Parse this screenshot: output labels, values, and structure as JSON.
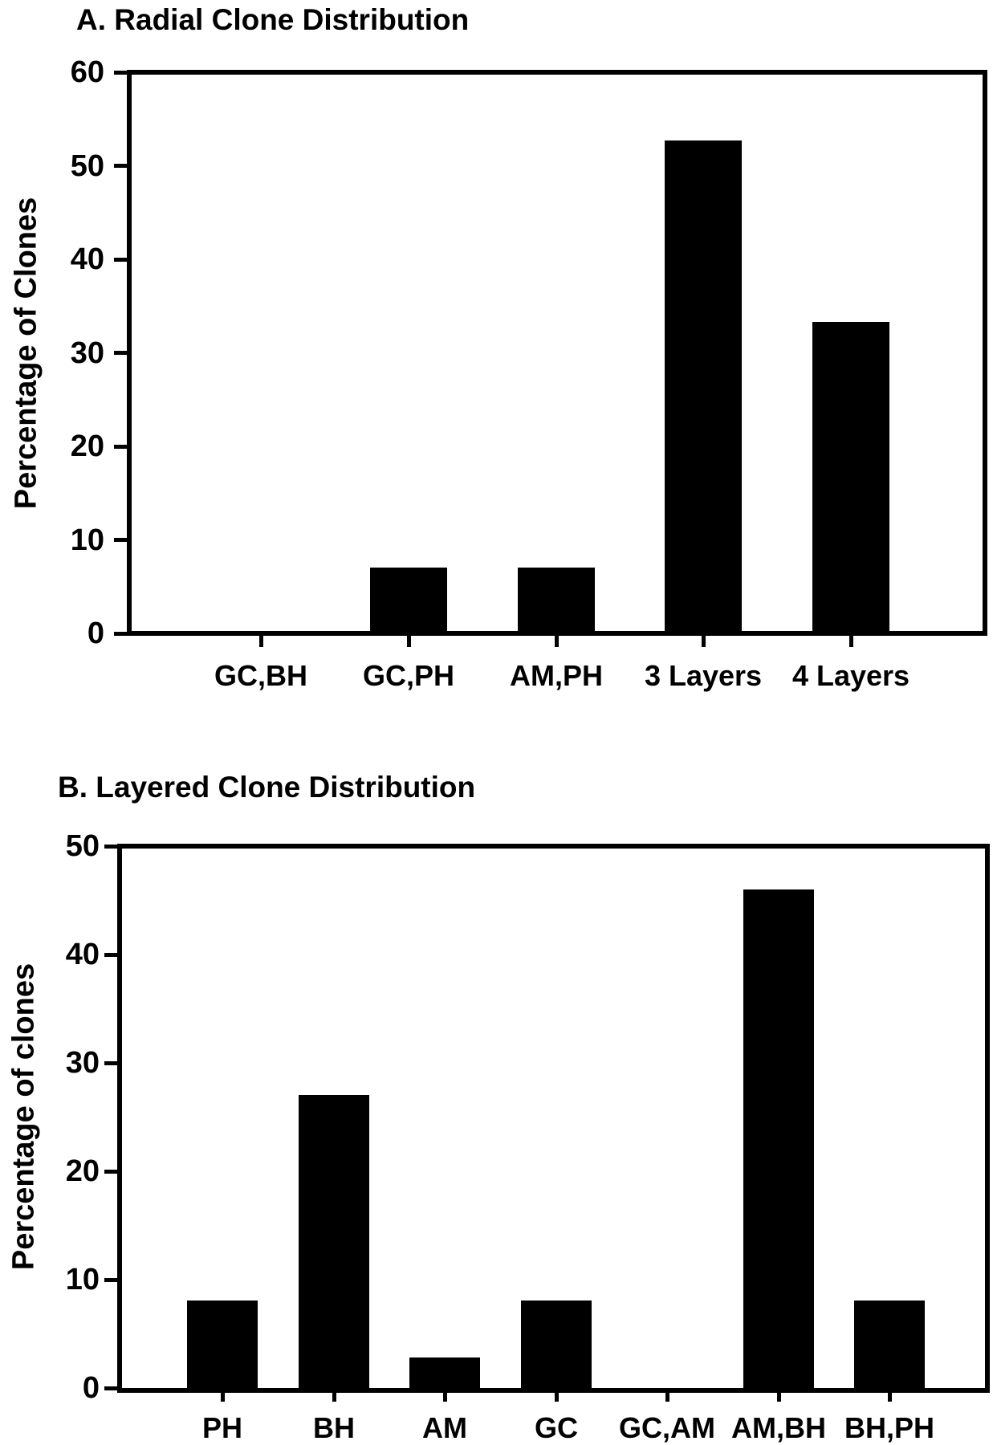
{
  "figure": {
    "background_color": "#ffffff",
    "bar_color": "#000000",
    "axis_color": "#000000",
    "text_color": "#000000"
  },
  "chart_data": [
    {
      "id": "A",
      "type": "bar",
      "title": "A. Radial Clone Distribution",
      "ylabel": "Percentage of Clones",
      "xlabel": "",
      "categories": [
        "GC,BH",
        "GC,PH",
        "AM,PH",
        "3 Layers",
        "4 Layers"
      ],
      "values": [
        0,
        7,
        7,
        52.7,
        33.3
      ],
      "ylim": [
        0,
        60
      ],
      "ytick_step": 10,
      "ytick_labels": [
        "0",
        "10",
        "20",
        "30",
        "40",
        "50",
        "60"
      ],
      "grid": false,
      "legend": "none",
      "bar_style": "solid black, boxed plot area, ticks outside axes"
    },
    {
      "id": "B",
      "type": "bar",
      "title": "B. Layered Clone Distribution",
      "ylabel": "Percentage of clones",
      "xlabel": "",
      "categories": [
        "PH",
        "BH",
        "AM",
        "GC",
        "GC,AM",
        "AM,BH",
        "BH,PH"
      ],
      "values": [
        8.1,
        27,
        2.8,
        8.1,
        0,
        46,
        8.1
      ],
      "ylim": [
        0,
        50
      ],
      "ytick_step": 10,
      "ytick_labels": [
        "0",
        "10",
        "20",
        "30",
        "40",
        "50"
      ],
      "grid": false,
      "legend": "none",
      "bar_style": "solid black, boxed plot area, ticks outside axes"
    }
  ]
}
